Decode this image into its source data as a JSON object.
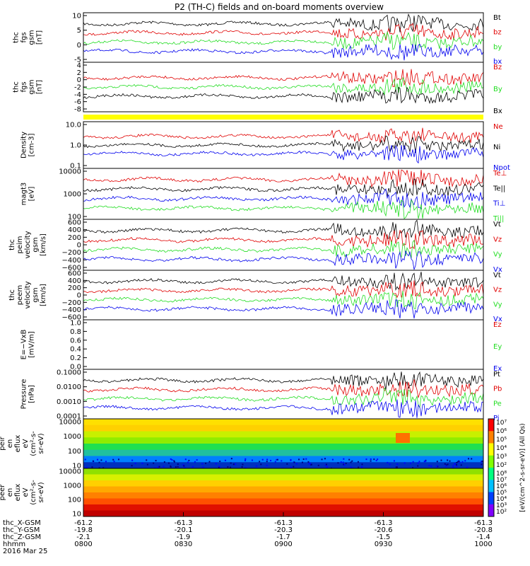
{
  "title": "P2 (TH-C) fields and on-board moments overview",
  "colors": {
    "black": "#000000",
    "red": "#e00000",
    "green": "#22dd22",
    "blue": "#0000ee",
    "yellow": "#ffff00"
  },
  "chart_data": [
    {
      "type": "line",
      "id": "fgs_gsm",
      "ylabel": [
        "thc",
        "fgs",
        "gsm",
        "[nT]"
      ],
      "yticks": [
        "10",
        "5",
        "0",
        "-5"
      ],
      "ylim": [
        -7,
        10.5
      ],
      "series": [
        {
          "name": "Bt",
          "color": "black",
          "base": 6,
          "amp": 1.5
        },
        {
          "name": "bz",
          "color": "red",
          "base": 1,
          "amp": 1.5
        },
        {
          "name": "by",
          "color": "green",
          "base": -1.5,
          "amp": 1.2
        },
        {
          "name": "bx",
          "color": "blue",
          "base": -3.5,
          "amp": 1.5
        }
      ]
    },
    {
      "type": "line",
      "id": "fgs_dsl",
      "ylabel": [
        "thc",
        "fgs",
        "gsm",
        "[nT]"
      ],
      "yticks": [
        "4",
        "2",
        "0",
        "-2",
        "-4",
        "-6",
        "-8"
      ],
      "ylim": [
        -9,
        5
      ],
      "series": [
        {
          "name": "Bz",
          "color": "red",
          "base": 0.5,
          "amp": 2
        },
        {
          "name": "By",
          "color": "green",
          "base": 0,
          "amp": 1
        },
        {
          "name": "Bx",
          "color": "black",
          "base": -2.5,
          "amp": 2
        }
      ]
    },
    {
      "type": "line",
      "id": "density",
      "ylabel": [
        "Density",
        "[cm-3]"
      ],
      "yticks": [
        "10.0",
        "1.0",
        "0.1"
      ],
      "log": true,
      "ylim": [
        0.1,
        10
      ],
      "series": [
        {
          "name": "Ne",
          "color": "red"
        },
        {
          "name": "Ni",
          "color": "black"
        },
        {
          "name": "Npot",
          "color": "blue"
        }
      ]
    },
    {
      "type": "line",
      "id": "temperature",
      "ylabel": [
        "magt3",
        "[eV]"
      ],
      "yticks": [
        "10000",
        "1000",
        "100"
      ],
      "log": true,
      "ylim": [
        20,
        10000
      ],
      "series": [
        {
          "name": "Te⊥",
          "color": "red",
          "base": 200
        },
        {
          "name": "Te||",
          "color": "black",
          "base": 150
        },
        {
          "name": "Ti⊥",
          "color": "blue",
          "base": 1300
        },
        {
          "name": "Ti||",
          "color": "green",
          "base": 900
        }
      ]
    },
    {
      "type": "line",
      "id": "peim_velocity",
      "ylabel": [
        "thc",
        "peim",
        "velocity",
        "gsm",
        "[km/s]"
      ],
      "yticks": [
        "600",
        "400",
        "200",
        "0",
        "−200",
        "−400",
        "−600"
      ],
      "ylim": [
        -650,
        650
      ],
      "series": [
        {
          "name": "Vt",
          "color": "black"
        },
        {
          "name": "Vz",
          "color": "red"
        },
        {
          "name": "Vy",
          "color": "green"
        },
        {
          "name": "Vx",
          "color": "blue"
        }
      ]
    },
    {
      "type": "line",
      "id": "peem_velocity",
      "ylabel": [
        "thc",
        "peem",
        "velocity",
        "gsm",
        "[km/s]"
      ],
      "yticks": [
        "600",
        "400",
        "200",
        "0",
        "−200",
        "−400",
        "−600"
      ],
      "ylim": [
        -650,
        650
      ],
      "series": [
        {
          "name": "Vt",
          "color": "black"
        },
        {
          "name": "Vz",
          "color": "red"
        },
        {
          "name": "Vy",
          "color": "green"
        },
        {
          "name": "Vx",
          "color": "blue"
        }
      ]
    },
    {
      "type": "line",
      "id": "efield",
      "ylabel": [
        "E=−VxB",
        "[mV/m]"
      ],
      "yticks": [
        "1.0",
        "0.8",
        "0.6",
        "0.4",
        "0.2",
        "0.0"
      ],
      "ylim": [
        0,
        1
      ],
      "series": [
        {
          "name": "Ez",
          "color": "red"
        },
        {
          "name": "Ey",
          "color": "green"
        },
        {
          "name": "Ex",
          "color": "blue"
        }
      ]
    },
    {
      "type": "line",
      "id": "pressure",
      "ylabel": [
        "Pressure",
        "[nPa]"
      ],
      "yticks": [
        "0.1000",
        "0.0100",
        "0.0010",
        "0.0001"
      ],
      "log": true,
      "ylim": [
        0.0001,
        0.1
      ],
      "series": [
        {
          "name": "Pt",
          "color": "black"
        },
        {
          "name": "Pb",
          "color": "red"
        },
        {
          "name": "Pe",
          "color": "green"
        },
        {
          "name": "Pi",
          "color": "blue"
        }
      ]
    },
    {
      "type": "heatmap",
      "id": "peir_spectrogram",
      "ylabel": [
        "thc",
        "peir",
        "en",
        "eflux",
        "eV",
        "(cm²-s-",
        "sr-eV)"
      ],
      "yticks": [
        "10000",
        "1000",
        "100",
        "10"
      ]
    },
    {
      "type": "heatmap",
      "id": "peer_spectrogram",
      "ylabel": [
        "thc",
        "peer",
        "en",
        "eflux",
        "eV",
        "(cm²-s-",
        "sr-eV)"
      ],
      "yticks": [
        "10000",
        "1000",
        "100",
        "10"
      ]
    }
  ],
  "colorbar": {
    "label": "[eV/(cm^2-s-sr-eV)] (All Qs)",
    "ticks_upper": [
      "10⁷",
      "10⁶",
      "10⁵",
      "10⁴",
      "10³",
      "10²"
    ],
    "ticks_lower": [
      "10⁸",
      "10⁷",
      "10⁶",
      "10⁵",
      "10⁴",
      "10³",
      "10²"
    ]
  },
  "x_axis": {
    "row_labels": [
      "thc_X-GSM",
      "thc_Y-GSM",
      "thc_Z-GSM",
      "hhmm",
      "2016 Mar 25"
    ],
    "ticks": [
      {
        "x": "-61.2",
        "y": "-19.8",
        "z": "-2.1",
        "hhmm": "0800"
      },
      {
        "x": "-61.3",
        "y": "-20.1",
        "z": "-1.9",
        "hhmm": "0830"
      },
      {
        "x": "-61.3",
        "y": "-20.3",
        "z": "-1.7",
        "hhmm": "0900"
      },
      {
        "x": "-61.3",
        "y": "-20.6",
        "z": "-1.5",
        "hhmm": "0930"
      },
      {
        "x": "-61.3",
        "y": "-20.8",
        "z": "-1.4",
        "hhmm": "1000"
      }
    ]
  }
}
